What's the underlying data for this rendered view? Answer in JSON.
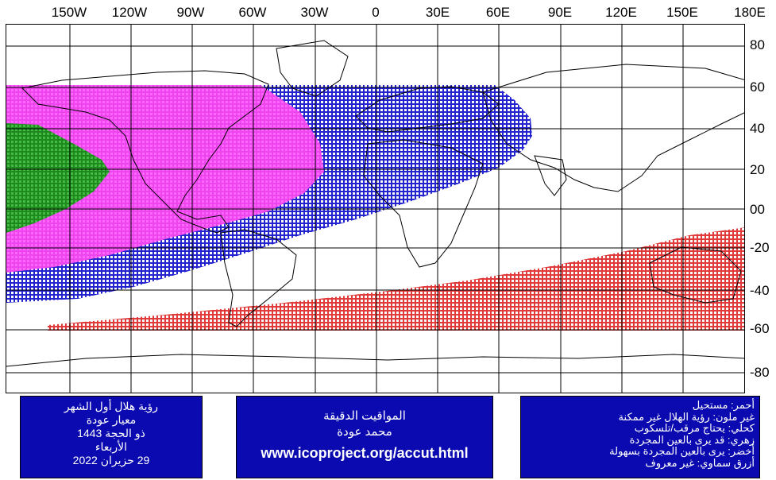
{
  "axes": {
    "longitude_labels": [
      "150W",
      "120W",
      "90W",
      "60W",
      "30W",
      "0",
      "30E",
      "60E",
      "90E",
      "120E",
      "150E",
      "180E"
    ],
    "latitude_labels": [
      "80",
      "60",
      "40",
      "20",
      "00",
      "-20",
      "-40",
      "-60",
      "-80"
    ]
  },
  "map": {
    "colors": {
      "red": "#e03a3a",
      "blue": "#2323d0",
      "magenta": "#ff55ff",
      "green": "#1e9a1e",
      "grid": "#000000",
      "coast": "#000000",
      "box_bg": "#0a0ab0"
    }
  },
  "info_left": {
    "line1": "رؤية هلال أول الشهر",
    "line2": "معيار عودة",
    "line3": "ذو الحجة 1443",
    "line4": "الأربعاء",
    "line5": "29 حزيران 2022"
  },
  "info_center": {
    "line1": "المواقيت الدقيقة",
    "line2": "محمد عودة",
    "url": "www.icoproject.org/accut.html"
  },
  "legend": {
    "red": "أحمر: مستحيل",
    "uncolored": "غير ملون: رؤية الهلال غير ممكنة",
    "purple": "كحلي: يحتاج مرقب/تلسكوب",
    "pink": "زهري: قد يرى بالعين المجردة",
    "green": "أخضر: يرى بالعين المجردة بسهولة",
    "sky_blue": "أزرق سماوي: غير معروف"
  }
}
